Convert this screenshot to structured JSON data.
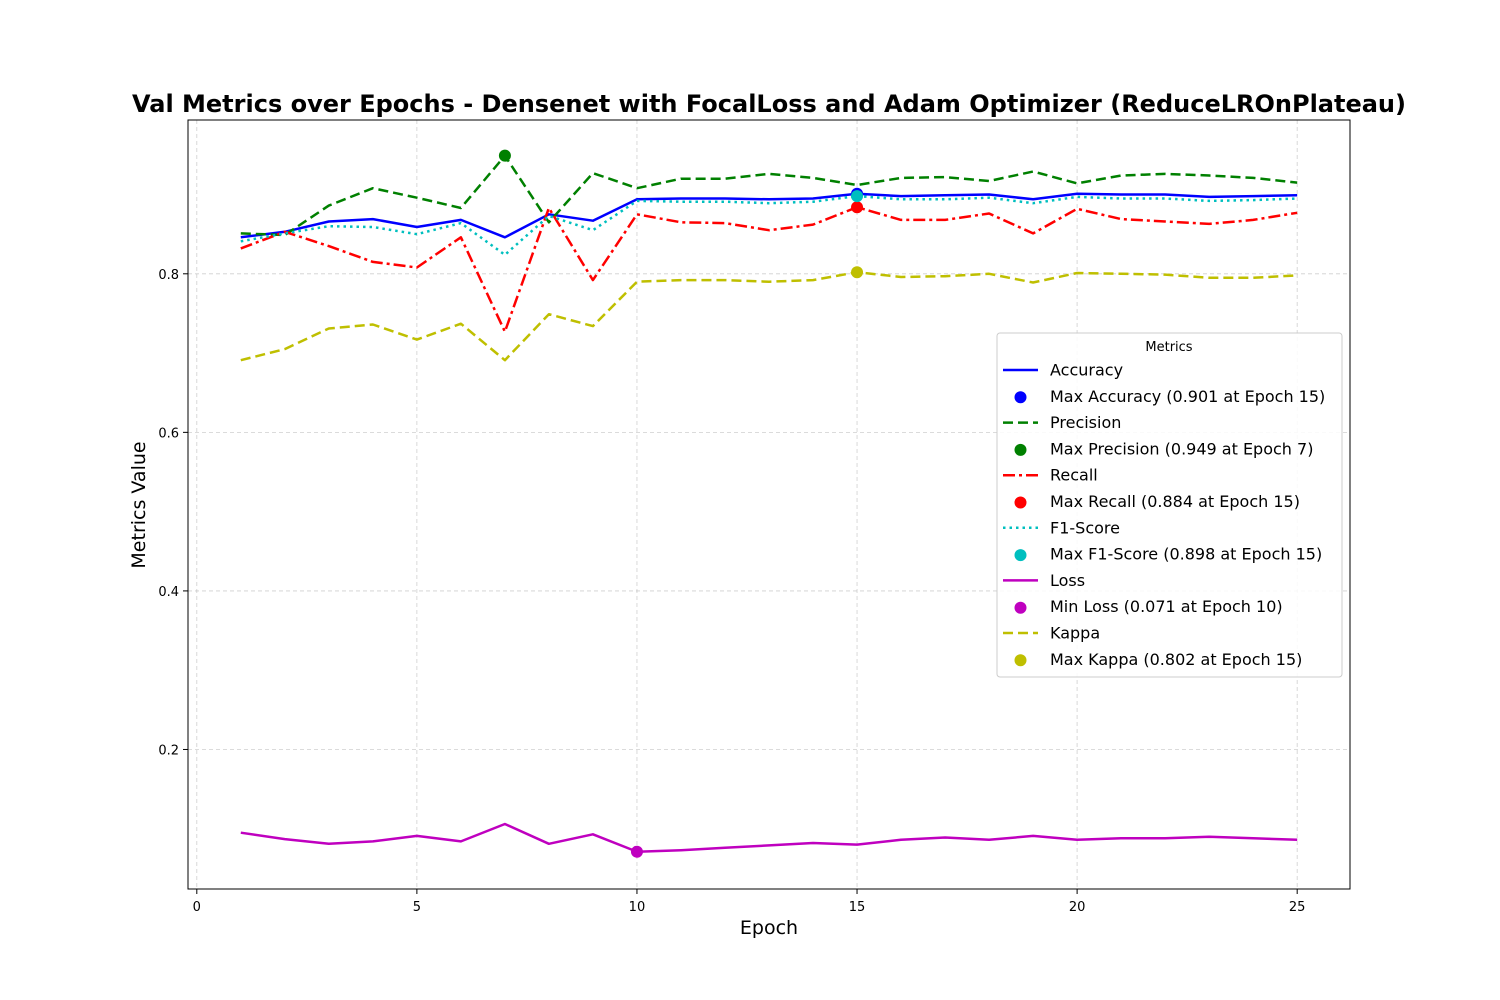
{
  "chart_data": {
    "type": "line",
    "title": "Val Metrics over Epochs - Densenet with FocalLoss and Adam Optimizer (ReduceLROnPlateau)",
    "xlabel": "Epoch",
    "ylabel": "Metrics Value",
    "xlim": [
      -0.2,
      26.2
    ],
    "ylim": [
      0.024,
      0.994
    ],
    "xticks": [
      0,
      5,
      10,
      15,
      20,
      25
    ],
    "yticks": [
      0.2,
      0.4,
      0.6,
      0.8
    ],
    "grid": true,
    "legend": {
      "title": "Metrics",
      "placement": "center-right"
    },
    "x": [
      1,
      2,
      3,
      4,
      5,
      6,
      7,
      8,
      9,
      10,
      11,
      12,
      13,
      14,
      15,
      16,
      17,
      18,
      19,
      20,
      21,
      22,
      23,
      24,
      25
    ],
    "series": [
      {
        "name": "Accuracy",
        "color": "#0000ff",
        "style": "solid",
        "values": [
          0.846,
          0.853,
          0.866,
          0.869,
          0.859,
          0.868,
          0.846,
          0.875,
          0.867,
          0.894,
          0.895,
          0.895,
          0.894,
          0.895,
          0.901,
          0.898,
          0.899,
          0.9,
          0.894,
          0.901,
          0.9,
          0.9,
          0.897,
          0.898,
          0.899
        ],
        "marker": {
          "label": "Max Accuracy (0.901 at Epoch 15)",
          "x": 15,
          "y": 0.901
        }
      },
      {
        "name": "Precision",
        "color": "#008000",
        "style": "dashed",
        "values": [
          0.851,
          0.849,
          0.886,
          0.908,
          0.896,
          0.883,
          0.949,
          0.865,
          0.927,
          0.908,
          0.92,
          0.92,
          0.926,
          0.921,
          0.912,
          0.921,
          0.922,
          0.917,
          0.929,
          0.914,
          0.924,
          0.926,
          0.924,
          0.921,
          0.915
        ],
        "marker": {
          "label": "Max Precision (0.949 at Epoch 7)",
          "x": 7,
          "y": 0.949
        }
      },
      {
        "name": "Recall",
        "color": "#ff0000",
        "style": "dashdot",
        "values": [
          0.832,
          0.853,
          0.835,
          0.815,
          0.808,
          0.846,
          0.727,
          0.883,
          0.792,
          0.875,
          0.865,
          0.864,
          0.855,
          0.862,
          0.884,
          0.868,
          0.868,
          0.876,
          0.851,
          0.882,
          0.869,
          0.866,
          0.863,
          0.868,
          0.877
        ],
        "marker": {
          "label": "Max Recall (0.884 at Epoch 15)",
          "x": 15,
          "y": 0.884
        }
      },
      {
        "name": "F1-Score",
        "color": "#00bfbf",
        "style": "dotted",
        "values": [
          0.841,
          0.851,
          0.86,
          0.859,
          0.85,
          0.864,
          0.824,
          0.873,
          0.855,
          0.892,
          0.891,
          0.891,
          0.889,
          0.891,
          0.898,
          0.894,
          0.894,
          0.896,
          0.889,
          0.897,
          0.895,
          0.895,
          0.892,
          0.893,
          0.895
        ],
        "marker": {
          "label": "Max F1-Score (0.898 at Epoch 15)",
          "x": 15,
          "y": 0.898
        }
      },
      {
        "name": "Loss",
        "color": "#bf00bf",
        "style": "solid",
        "values": [
          0.095,
          0.087,
          0.081,
          0.084,
          0.091,
          0.084,
          0.106,
          0.081,
          0.093,
          0.071,
          0.073,
          0.076,
          0.079,
          0.082,
          0.08,
          0.086,
          0.089,
          0.086,
          0.091,
          0.086,
          0.088,
          0.088,
          0.09,
          0.088,
          0.086
        ],
        "marker": {
          "label": "Min Loss (0.071 at Epoch 10)",
          "x": 10,
          "y": 0.071
        }
      },
      {
        "name": "Kappa",
        "color": "#bfbf00",
        "style": "dashed",
        "values": [
          0.691,
          0.705,
          0.731,
          0.736,
          0.717,
          0.737,
          0.691,
          0.749,
          0.734,
          0.79,
          0.792,
          0.792,
          0.79,
          0.792,
          0.802,
          0.796,
          0.797,
          0.8,
          0.789,
          0.801,
          0.8,
          0.799,
          0.795,
          0.795,
          0.798
        ],
        "marker": {
          "label": "Max Kappa (0.802 at Epoch 15)",
          "x": 15,
          "y": 0.802
        }
      }
    ]
  }
}
